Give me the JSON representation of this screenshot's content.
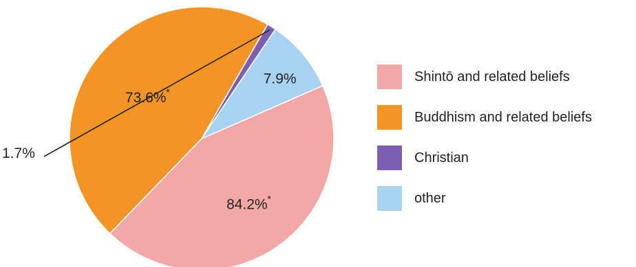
{
  "chart_data": {
    "type": "pie",
    "title": "",
    "series": [
      {
        "name": "Shintō and related beliefs",
        "label": "84.2%",
        "note": "*",
        "color": "#f4a8a6",
        "share": 0.438
      },
      {
        "name": "Buddhism and related beliefs",
        "label": "73.6%",
        "note": "*",
        "color": "#f39424",
        "share": 0.461
      },
      {
        "name": "Christian",
        "label": "1.7%",
        "note": "",
        "color": "#7c5fb3",
        "share": 0.011
      },
      {
        "name": "other",
        "label": "7.9%",
        "note": "",
        "color": "#a8d3f0",
        "share": 0.09
      }
    ],
    "legend_position": "right"
  }
}
